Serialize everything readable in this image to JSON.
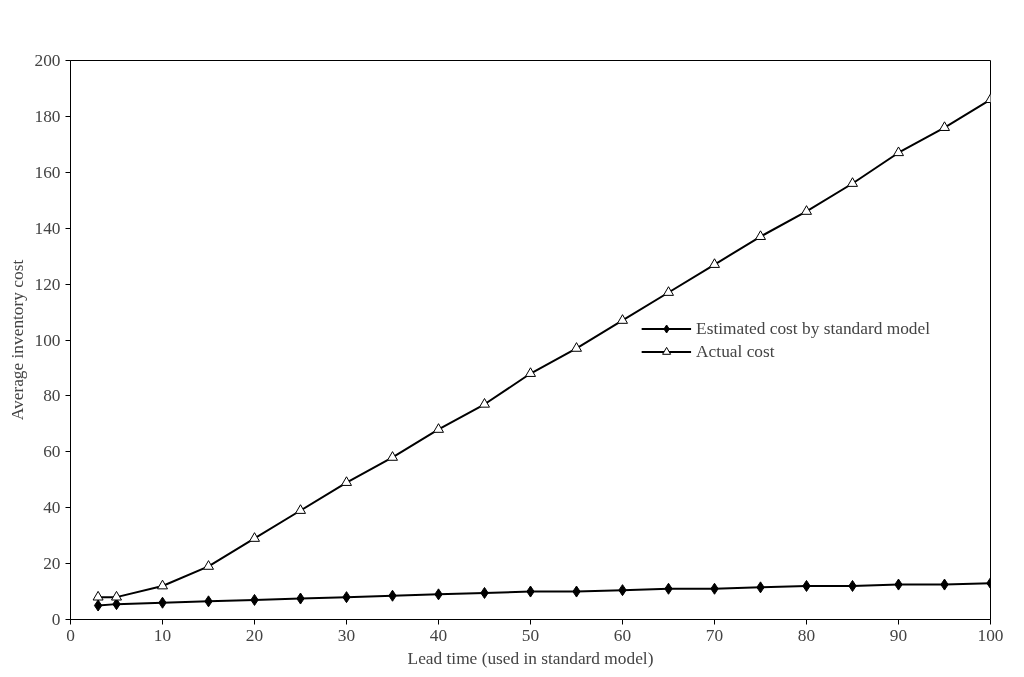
{
  "chart_data": {
    "type": "line",
    "xlabel": "Lead time (used in standard model)",
    "ylabel": "Average inventory cost",
    "x": [
      3,
      5,
      10,
      15,
      20,
      25,
      30,
      35,
      40,
      45,
      50,
      55,
      60,
      65,
      70,
      75,
      80,
      85,
      90,
      95,
      100
    ],
    "series": [
      {
        "name": "Estimated cost by standard model",
        "color": "#000000",
        "marker": "diamond",
        "values": [
          5,
          5.5,
          6,
          6.5,
          7,
          7.5,
          8,
          8.5,
          9,
          9.5,
          10,
          10,
          10.5,
          11,
          11,
          11.5,
          12,
          12,
          12.5,
          12.5,
          13
        ]
      },
      {
        "name": "Actual cost",
        "color": "#000000",
        "marker": "triangle",
        "values": [
          8,
          8,
          12,
          19,
          29,
          39,
          49,
          58,
          68,
          77,
          88,
          97,
          107,
          117,
          127,
          137,
          146,
          156,
          167,
          176,
          186
        ]
      }
    ],
    "xlim": [
      0,
      100
    ],
    "xticks": [
      0,
      10,
      20,
      30,
      40,
      50,
      60,
      70,
      80,
      90,
      100
    ],
    "ylim": [
      0,
      200
    ],
    "yticks": [
      0,
      20,
      40,
      60,
      80,
      100,
      120,
      140,
      160,
      180,
      200
    ],
    "grid": false,
    "legend": "right"
  }
}
